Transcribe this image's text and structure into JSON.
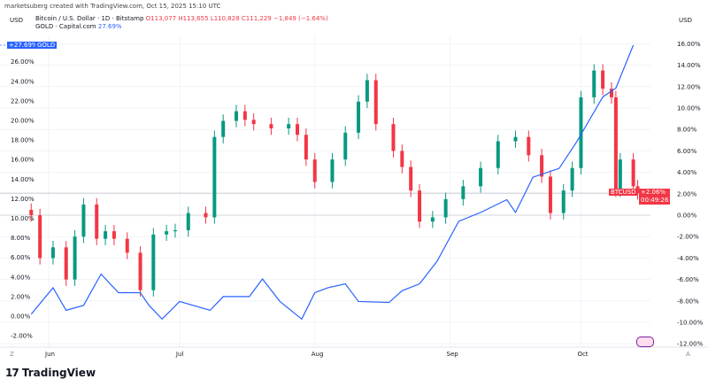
{
  "header": {
    "credit": "marketsuberg created with TradingView.com, Oct 15, 2025 15:10 UTC",
    "currency_left": "USD",
    "currency_right": "USD",
    "btc_title": "Bitcoin / U.S. Dollar · 1D · Bitstamp",
    "btc_o": "O113,077",
    "btc_h": "H113,655",
    "btc_l": "L110,828",
    "btc_c": "C111,229",
    "btc_chg": "−1,849 (−1.64%)",
    "gold_title": "GOLD · Capital.com",
    "gold_chg": "27.69%"
  },
  "badges": {
    "gold_value": "+27.69%",
    "gold_label": "GOLD",
    "btc_label": "BTCUSD",
    "btc_value": "+2.06%",
    "btc_timer": "00:49:26"
  },
  "footer": {
    "brand": "TradingView",
    "logo": "TV"
  },
  "colors": {
    "up": "#089981",
    "down": "#f23645",
    "gold": "#2962ff"
  },
  "chart_data": {
    "type": "candlestick+line",
    "x_ticks": [
      "Jun",
      "Jul",
      "Aug",
      "Sep",
      "Oct"
    ],
    "left_axis": {
      "ticks": [
        "-2.00%",
        "0.00%",
        "2.00%",
        "4.00%",
        "6.00%",
        "8.00%",
        "10.00%",
        "12.00%",
        "14.00%",
        "16.00%",
        "18.00%",
        "20.00%",
        "22.00%",
        "24.00%",
        "26.00%"
      ],
      "values": [
        -2,
        0,
        2,
        4,
        6,
        8,
        10,
        12,
        14,
        16,
        18,
        20,
        22,
        24,
        26
      ]
    },
    "right_axis": {
      "ticks": [
        "-12.00%",
        "-10.00%",
        "-8.00%",
        "-6.00%",
        "-4.00%",
        "-2.00%",
        "0.00%",
        "2.00%",
        "4.00%",
        "6.00%",
        "8.00%",
        "10.00%",
        "12.00%",
        "14.00%",
        "16.00%"
      ],
      "values": [
        -12,
        -10,
        -8,
        -6,
        -4,
        -2,
        0,
        2,
        4,
        6,
        8,
        10,
        12,
        14,
        16
      ]
    },
    "grid": true,
    "series": [
      {
        "name": "BTCUSD",
        "axis": "right",
        "type": "candlestick",
        "points": [
          [
            "2025-05-28",
            0
          ],
          [
            "2025-05-30",
            -4
          ],
          [
            "2025-06-02",
            -3
          ],
          [
            "2025-06-05",
            -6
          ],
          [
            "2025-06-07",
            -2
          ],
          [
            "2025-06-09",
            1
          ],
          [
            "2025-06-12",
            -2.2
          ],
          [
            "2025-06-14",
            -1.5
          ],
          [
            "2025-06-16",
            -2.2
          ],
          [
            "2025-06-19",
            -3.5
          ],
          [
            "2025-06-22",
            -7
          ],
          [
            "2025-06-25",
            -1.8
          ],
          [
            "2025-06-28",
            -1.5
          ],
          [
            "2025-06-30",
            -1.4
          ],
          [
            "2025-07-03",
            0.2
          ],
          [
            "2025-07-07",
            -0.2
          ],
          [
            "2025-07-09",
            7.3
          ],
          [
            "2025-07-11",
            8.8
          ],
          [
            "2025-07-14",
            9.7
          ],
          [
            "2025-07-16",
            8.9
          ],
          [
            "2025-07-18",
            8.5
          ],
          [
            "2025-07-22",
            8.1
          ],
          [
            "2025-07-26",
            8.5
          ],
          [
            "2025-07-28",
            7.5
          ],
          [
            "2025-07-30",
            5.2
          ],
          [
            "2025-08-01",
            3.1
          ],
          [
            "2025-08-05",
            5.2
          ],
          [
            "2025-08-08",
            7.7
          ],
          [
            "2025-08-11",
            10.6
          ],
          [
            "2025-08-13",
            12.6
          ],
          [
            "2025-08-15",
            8.5
          ],
          [
            "2025-08-19",
            6
          ],
          [
            "2025-08-21",
            4.5
          ],
          [
            "2025-08-23",
            2.3
          ],
          [
            "2025-08-25",
            -0.6
          ],
          [
            "2025-08-28",
            -0.2
          ],
          [
            "2025-08-31",
            1.5
          ],
          [
            "2025-09-04",
            2.7
          ],
          [
            "2025-09-08",
            4.4
          ],
          [
            "2025-09-12",
            6.9
          ],
          [
            "2025-09-16",
            7.3
          ],
          [
            "2025-09-19",
            5.6
          ],
          [
            "2025-09-22",
            3.6
          ],
          [
            "2025-09-24",
            0.2
          ],
          [
            "2025-09-27",
            2.3
          ],
          [
            "2025-09-29",
            4.4
          ],
          [
            "2025-10-01",
            11
          ],
          [
            "2025-10-04",
            13.5
          ],
          [
            "2025-10-06",
            11.8
          ],
          [
            "2025-10-08",
            11
          ],
          [
            "2025-10-09",
            2.3
          ],
          [
            "2025-10-10",
            5.2
          ],
          [
            "2025-10-13",
            2.7
          ],
          [
            "2025-10-14",
            2.06
          ]
        ]
      },
      {
        "name": "GOLD",
        "axis": "left",
        "type": "line",
        "points": [
          [
            "2025-05-28",
            0.2
          ],
          [
            "2025-06-02",
            2.9
          ],
          [
            "2025-06-05",
            0.6
          ],
          [
            "2025-06-09",
            1.1
          ],
          [
            "2025-06-13",
            4.3
          ],
          [
            "2025-06-17",
            2.4
          ],
          [
            "2025-06-22",
            2.4
          ],
          [
            "2025-06-24",
            1.1
          ],
          [
            "2025-06-27",
            -0.3
          ],
          [
            "2025-07-01",
            1.5
          ],
          [
            "2025-07-08",
            0.6
          ],
          [
            "2025-07-11",
            2
          ],
          [
            "2025-07-17",
            2
          ],
          [
            "2025-07-20",
            3.8
          ],
          [
            "2025-07-24",
            1.5
          ],
          [
            "2025-07-29",
            -0.3
          ],
          [
            "2025-08-01",
            2.4
          ],
          [
            "2025-08-04",
            2.9
          ],
          [
            "2025-08-08",
            3.3
          ],
          [
            "2025-08-11",
            1.5
          ],
          [
            "2025-08-18",
            1.4
          ],
          [
            "2025-08-21",
            2.6
          ],
          [
            "2025-08-25",
            3.3
          ],
          [
            "2025-08-29",
            5.6
          ],
          [
            "2025-09-03",
            9.7
          ],
          [
            "2025-09-08",
            10.6
          ],
          [
            "2025-09-14",
            11.9
          ],
          [
            "2025-09-16",
            10.6
          ],
          [
            "2025-09-20",
            14.2
          ],
          [
            "2025-09-26",
            15.1
          ],
          [
            "2025-09-30",
            17.8
          ],
          [
            "2025-10-06",
            22.4
          ],
          [
            "2025-10-09",
            23.3
          ],
          [
            "2025-10-13",
            27.69
          ]
        ]
      }
    ]
  }
}
